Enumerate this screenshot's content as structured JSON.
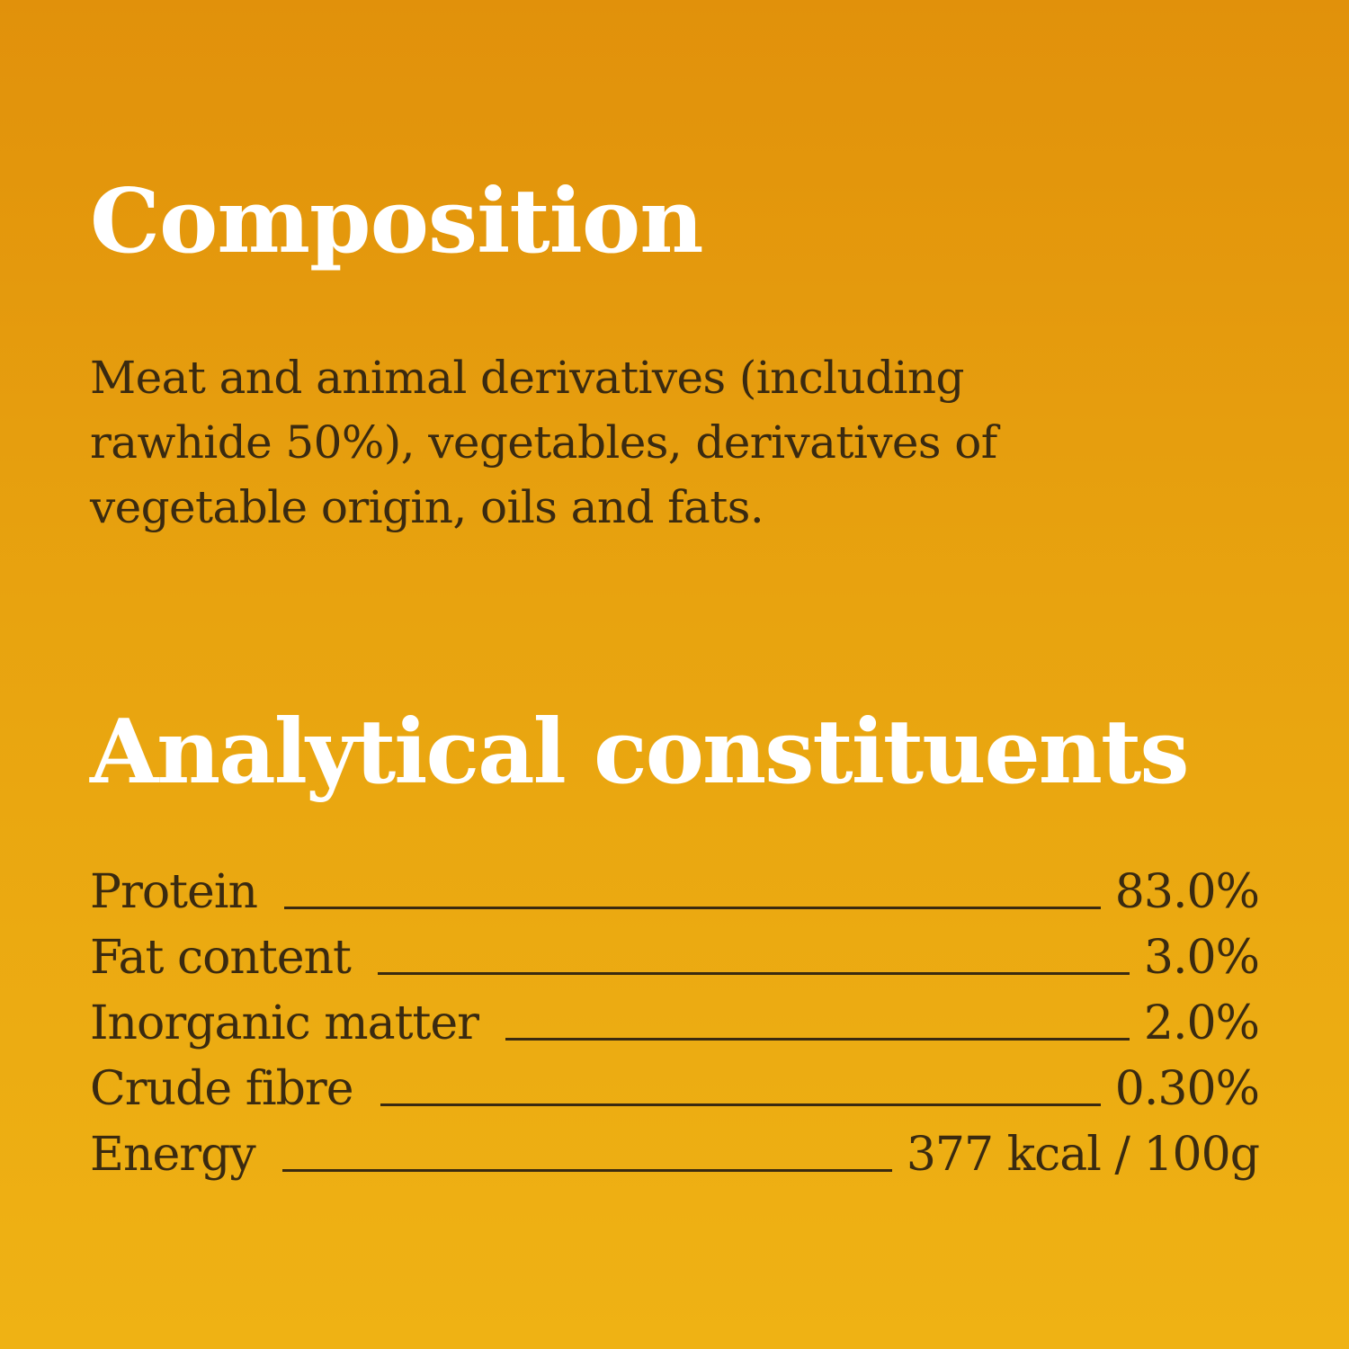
{
  "composition": {
    "heading": "Composition",
    "text": "Meat and animal derivatives (including rawhide 50%), vegetables, derivatives of vegetable origin, oils and fats."
  },
  "analytical": {
    "heading": "Analytical constituents",
    "rows": [
      {
        "label": "Protein",
        "value": "83.0%"
      },
      {
        "label": "Fat content",
        "value": "3.0%"
      },
      {
        "label": "Inorganic matter",
        "value": "2.0%"
      },
      {
        "label": "Crude fibre",
        "value": "0.30%"
      },
      {
        "label": "Energy",
        "value": "377 kcal / 100g"
      }
    ]
  },
  "colors": {
    "background_top": "#e1910b",
    "background_bottom": "#efb214",
    "heading": "#ffffff",
    "body_text": "#3a2a10"
  }
}
